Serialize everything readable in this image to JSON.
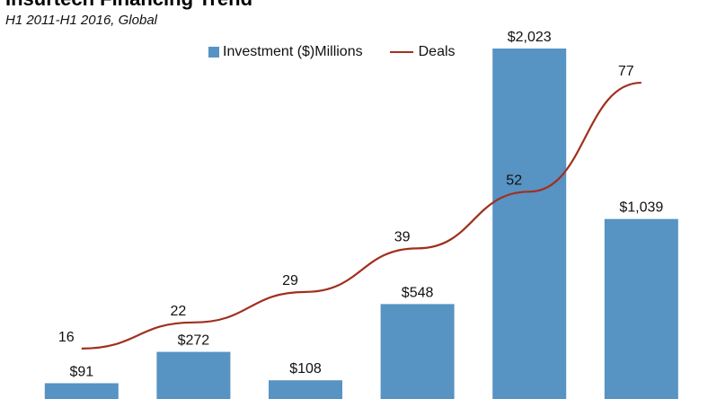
{
  "chart_data": {
    "type": "bar",
    "title": "Insurtech Financing Trend",
    "subtitle": "H1 2011-H1 2016, Global",
    "categories": [
      "",
      "",
      "",
      "",
      "",
      ""
    ],
    "series": [
      {
        "name": "Investment ($)Millions",
        "type": "bar",
        "values": [
          91,
          272,
          108,
          548,
          2023,
          1039
        ],
        "labels": [
          "$91",
          "$272",
          "$108",
          "$548",
          "$2,023",
          "$1,039"
        ],
        "color": "#5793c3"
      },
      {
        "name": "Deals",
        "type": "line",
        "values": [
          16,
          22,
          29,
          39,
          52,
          77
        ],
        "labels": [
          "16",
          "22",
          "29",
          "39",
          "52",
          "77"
        ],
        "color": "#a0301e"
      }
    ],
    "legend_position": "top",
    "grid": false
  }
}
